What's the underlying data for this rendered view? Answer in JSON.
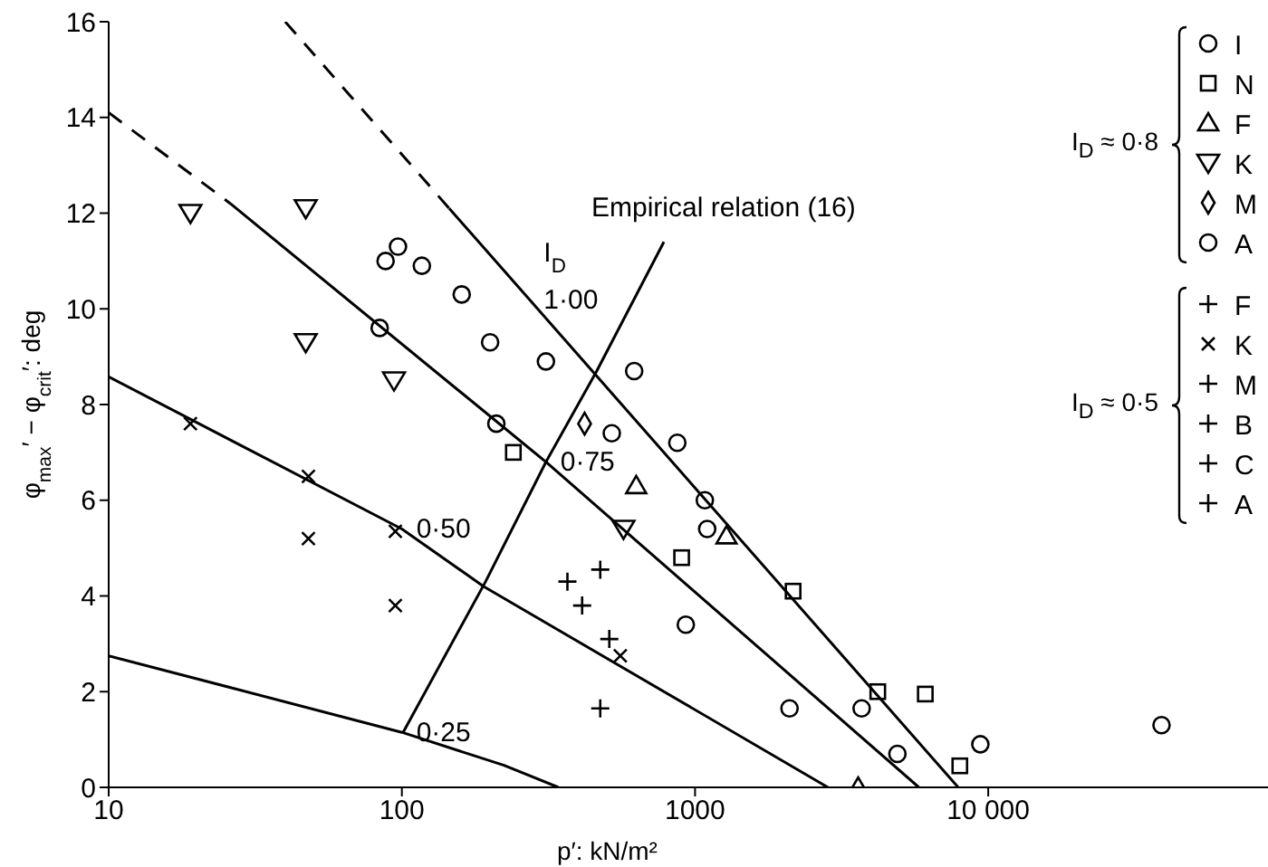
{
  "chart_data": {
    "type": "scatter",
    "xlabel": "p′: kN/m²",
    "ylabel": "φ$_{max}$′ − φ$_{crit}$′: deg",
    "log": "x",
    "xlim": [
      10,
      90000
    ],
    "xticks": [
      10,
      100,
      1000,
      {
        "value": 10000,
        "label": "10 000"
      }
    ],
    "ylim": [
      0,
      16
    ],
    "yticks": [
      0,
      2,
      4,
      6,
      8,
      10,
      12,
      14,
      16
    ],
    "legend": "top right",
    "annotations": [
      "I$_{D}$",
      "I$_{D}$ ≈ 0·8",
      "I$_{D}$ ≈ 0·5"
    ],
    "series": [
      {
        "type": "line",
        "name": "1·00",
        "color": "#000000",
        "marker": "none",
        "line_style": "solid",
        "x": [
          145,
          272,
          7900
        ],
        "values": [
          12.1,
          10.2,
          0
        ]
      },
      {
        "type": "line",
        "color": "#000000",
        "marker": "none",
        "line_style": "dashed",
        "x": [
          40,
          145
        ],
        "values": [
          16,
          12.1
        ]
      },
      {
        "type": "line",
        "name": "0·75",
        "color": "#000000",
        "marker": "none",
        "line_style": "solid",
        "x": [
          26,
          310,
          5800
        ],
        "values": [
          12.2,
          6.8,
          0
        ]
      },
      {
        "type": "line",
        "color": "#000000",
        "marker": "none",
        "line_style": "dashed",
        "x": [
          10,
          26
        ],
        "values": [
          14.1,
          12.2
        ]
      },
      {
        "type": "line",
        "name": "0·50",
        "color": "#000000",
        "marker": "none",
        "line_style": "solid",
        "x": [
          10,
          100,
          190,
          2840
        ],
        "values": [
          8.58,
          5.4,
          4.2,
          0
        ]
      },
      {
        "type": "line",
        "name": "0·25",
        "color": "#000000",
        "marker": "none",
        "line_style": "solid",
        "x": [
          10,
          100,
          223,
          342
        ],
        "values": [
          2.75,
          1.15,
          0.46,
          0
        ]
      },
      {
        "type": "line",
        "name": "Empirical relation (16)",
        "color": "#000000",
        "marker": "none",
        "line_style": "solid",
        "x": [
          783,
          462,
          310,
          193,
          101
        ],
        "values": [
          11.4,
          8.7,
          6.8,
          4.3,
          1.15
        ]
      },
      {
        "name": "I",
        "color": "#000000",
        "marker": "circle",
        "x": [
          88,
          97,
          117,
          160,
          84,
          200,
          310,
          210,
          520,
          870,
          1080,
          1100,
          930,
          2100,
          3700,
          4900,
          9400,
          39000
        ],
        "values": [
          11.0,
          11.3,
          10.9,
          10.3,
          9.6,
          9.3,
          8.9,
          7.6,
          7.4,
          7.2,
          6.0,
          5.4,
          3.4,
          1.65,
          1.65,
          0.7,
          0.9,
          1.3
        ]
      },
      {
        "name": "N",
        "color": "#000000",
        "marker": "square",
        "x": [
          240,
          900,
          2160,
          4200,
          6100,
          8000
        ],
        "values": [
          7.0,
          4.8,
          4.1,
          2.0,
          1.95,
          0.45
        ]
      },
      {
        "name": "F",
        "color": "#000000",
        "marker": "triangle",
        "x": [
          630,
          1280,
          3600
        ],
        "values": [
          6.3,
          5.25,
          0
        ]
      },
      {
        "name": "K",
        "color": "#000000",
        "marker": "triangle-down",
        "x": [
          19,
          47,
          47,
          94,
          570
        ],
        "values": [
          12.0,
          12.1,
          9.3,
          8.5,
          5.4
        ]
      },
      {
        "name": "M",
        "color": "#000000",
        "marker": "diamond",
        "x": [
          420
        ],
        "values": [
          7.6
        ]
      },
      {
        "name": "A",
        "color": "#000000",
        "marker": "circle",
        "x": [
          620
        ],
        "values": [
          8.7
        ]
      },
      {
        "name": "F",
        "color": "#000000",
        "marker": "cross",
        "x": [
          510
        ],
        "values": [
          3.1
        ]
      },
      {
        "name": "K",
        "color": "#000000",
        "marker": "x",
        "x": [
          19,
          48,
          48,
          95,
          95,
          556
        ],
        "values": [
          7.6,
          6.5,
          5.2,
          5.35,
          3.8,
          2.75
        ]
      },
      {
        "name": "M",
        "color": "#000000",
        "marker": "cross",
        "x": [
          367
        ],
        "values": [
          4.3
        ]
      },
      {
        "name": "B",
        "color": "#000000",
        "marker": "cross",
        "x": [
          412
        ],
        "values": [
          3.8
        ]
      },
      {
        "name": "C",
        "color": "#000000",
        "marker": "cross",
        "x": [
          475
        ],
        "values": [
          1.65
        ]
      },
      {
        "name": "A",
        "color": "#000000",
        "marker": "cross",
        "x": [
          475
        ],
        "values": [
          4.55
        ]
      }
    ]
  }
}
